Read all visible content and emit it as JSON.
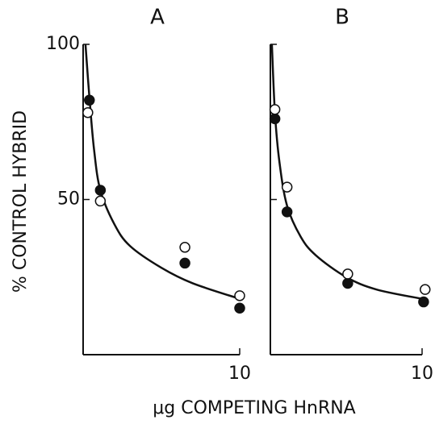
{
  "ylabel": "% CONTROL HYBRID",
  "xlabel": "μg COMPETING HnRNA",
  "chart_data": [
    {
      "type": "scatter",
      "title": "A",
      "xlim": [
        0,
        10
      ],
      "ylim": [
        0,
        100
      ],
      "xticks": [
        10
      ],
      "yticks": [
        50,
        100
      ],
      "ytick_labels": true,
      "series": [
        {
          "color": "#111111",
          "filled": true,
          "x": [
            0.4,
            1.1,
            6.5,
            10
          ],
          "values": [
            82,
            53,
            29.5,
            15
          ]
        },
        {
          "color": "#111111",
          "filled": false,
          "x": [
            0.3,
            1.1,
            6.5,
            10
          ],
          "values": [
            78,
            49.5,
            34.6,
            19
          ]
        }
      ],
      "curve": {
        "color": "#111111",
        "x": [
          0.15,
          0.4,
          0.7,
          1.1,
          2,
          3,
          5,
          7,
          10
        ],
        "values": [
          100,
          83,
          66,
          53,
          42,
          35,
          28,
          23,
          18
        ]
      }
    },
    {
      "type": "scatter",
      "title": "B",
      "xlim": [
        0,
        10
      ],
      "ylim": [
        0,
        100
      ],
      "xticks": [
        10
      ],
      "yticks": [
        50,
        100
      ],
      "ytick_labels": false,
      "series": [
        {
          "color": "#111111",
          "filled": true,
          "x": [
            0.3,
            1.1,
            5.1,
            10.1
          ],
          "values": [
            76,
            46,
            23,
            17
          ]
        },
        {
          "color": "#111111",
          "filled": false,
          "x": [
            0.3,
            1.1,
            5.1,
            10.2
          ],
          "values": [
            79,
            54,
            26,
            21
          ]
        }
      ],
      "curve": {
        "color": "#111111",
        "x": [
          0.1,
          0.3,
          0.6,
          1.1,
          2,
          3,
          5,
          7,
          10
        ],
        "values": [
          100,
          78,
          62,
          48,
          38,
          32,
          25,
          21,
          18
        ]
      }
    }
  ]
}
